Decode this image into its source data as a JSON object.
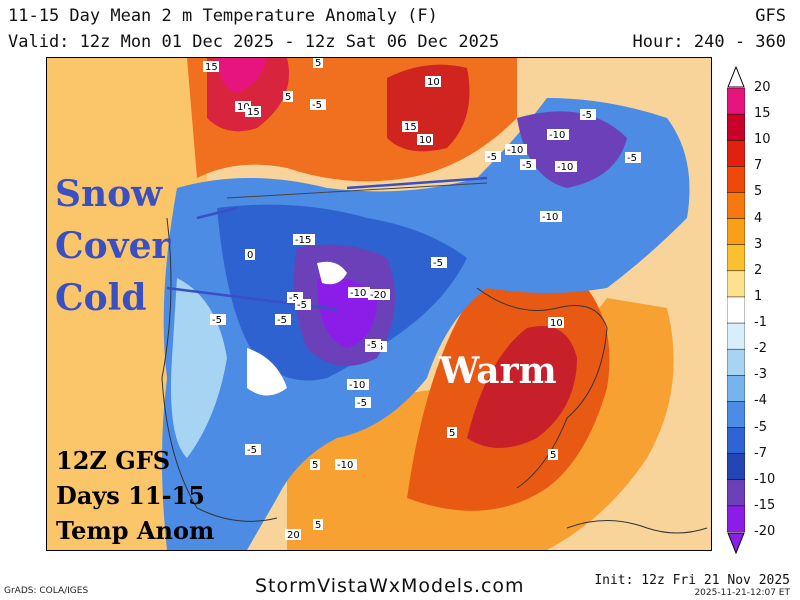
{
  "header": {
    "title": "11-15 Day Mean 2 m Temperature Anomaly (F)",
    "model": "GFS",
    "valid": "Valid: 12z Mon 01 Dec 2025 - 12z Sat 06 Dec 2025",
    "hour": "Hour: 240 - 360"
  },
  "overlays": {
    "snow": "Snow",
    "cover": "Cover",
    "cold": "Cold",
    "warm": "Warm",
    "box_line1": "12Z GFS",
    "box_line2": "Days 11-15",
    "box_line3": "Temp Anom"
  },
  "colorbar": {
    "levels": [
      "20",
      "15",
      "10",
      "7",
      "5",
      "4",
      "3",
      "2",
      "1",
      "-1",
      "-2",
      "-3",
      "-4",
      "-5",
      "-7",
      "-10",
      "-15",
      "-20"
    ],
    "colors": [
      "#e8147e",
      "#c8002a",
      "#e02010",
      "#f04808",
      "#f87810",
      "#faa018",
      "#fbc030",
      "#fde090",
      "#ffffff",
      "#d8eefa",
      "#a8d4f4",
      "#78b4ec",
      "#4c8ce4",
      "#3064d4",
      "#2446b4",
      "#6c40b8",
      "#8c1ce8"
    ]
  },
  "contour_labels": [
    "15",
    "10",
    "15",
    "5",
    "5",
    "10",
    "15",
    "10",
    "-5",
    "-10",
    "-5",
    "-10",
    "-5",
    "-10",
    "-15",
    "-20",
    "-10",
    "-5",
    "-15",
    "-10",
    "-5",
    "-5",
    "-5",
    "10",
    "5",
    "5",
    "5",
    "-10",
    "-5",
    "0",
    "-5",
    "-5",
    "-5",
    "-5",
    "5",
    "20",
    "-5",
    "-10"
  ],
  "footer": {
    "grads": "GrADS: COLA/IGES",
    "site": "StormVistaWxModels.com",
    "init": "Init: 12z Fri 21 Nov 2025",
    "timestamp": "2025-11-21-12:07 ET"
  }
}
